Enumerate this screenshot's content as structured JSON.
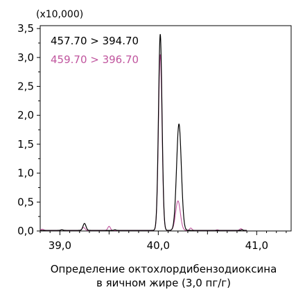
{
  "chart_data": {
    "type": "line",
    "multiplier_label": "(x10,000)",
    "xlabel_line1": "Определение октохлордибензодиоксина",
    "xlabel_line2": "в яичном жире (3,0 пг/г)",
    "xlim": [
      38.8,
      41.35
    ],
    "ylim": [
      0,
      3.55
    ],
    "y_ticks": [
      {
        "value": 0.0,
        "label": "0,0"
      },
      {
        "value": 0.5,
        "label": "0,5"
      },
      {
        "value": 1.0,
        "label": "1,0"
      },
      {
        "value": 1.5,
        "label": "1,5"
      },
      {
        "value": 2.0,
        "label": "2,0"
      },
      {
        "value": 2.5,
        "label": "2,5"
      },
      {
        "value": 3.0,
        "label": "3,0"
      },
      {
        "value": 3.5,
        "label": "3,5"
      }
    ],
    "x_ticks": [
      {
        "value": 39.0,
        "label": "39,0"
      },
      {
        "value": 40.0,
        "label": "40,0"
      },
      {
        "value": 41.0,
        "label": "41,0"
      }
    ],
    "grid": false,
    "legend_position": "top-left",
    "series": [
      {
        "name": "457.70 > 394.70",
        "color": "#000000",
        "baseline": 0.01,
        "x_end": 40.9,
        "peaks": [
          {
            "x": 39.02,
            "y": 0.02,
            "w": 0.012
          },
          {
            "x": 39.25,
            "y": 0.13,
            "w": 0.015
          },
          {
            "x": 39.56,
            "y": 0.02,
            "w": 0.01
          },
          {
            "x": 40.02,
            "y": 3.4,
            "w": 0.018
          },
          {
            "x": 40.21,
            "y": 1.85,
            "w": 0.024
          },
          {
            "x": 40.6,
            "y": 0.01,
            "w": 0.01
          },
          {
            "x": 40.85,
            "y": 0.02,
            "w": 0.01
          }
        ]
      },
      {
        "name": "459.70 > 396.70",
        "color": "#c0559e",
        "baseline": 0.01,
        "x_end": 40.9,
        "peaks": [
          {
            "x": 38.82,
            "y": 0.03,
            "w": 0.015
          },
          {
            "x": 39.02,
            "y": 0.02,
            "w": 0.012
          },
          {
            "x": 39.24,
            "y": 0.06,
            "w": 0.015
          },
          {
            "x": 39.5,
            "y": 0.08,
            "w": 0.013
          },
          {
            "x": 40.02,
            "y": 3.05,
            "w": 0.018
          },
          {
            "x": 40.2,
            "y": 0.52,
            "w": 0.024
          },
          {
            "x": 40.33,
            "y": 0.05,
            "w": 0.012
          },
          {
            "x": 40.6,
            "y": 0.02,
            "w": 0.01
          },
          {
            "x": 40.84,
            "y": 0.04,
            "w": 0.012
          }
        ]
      }
    ]
  }
}
